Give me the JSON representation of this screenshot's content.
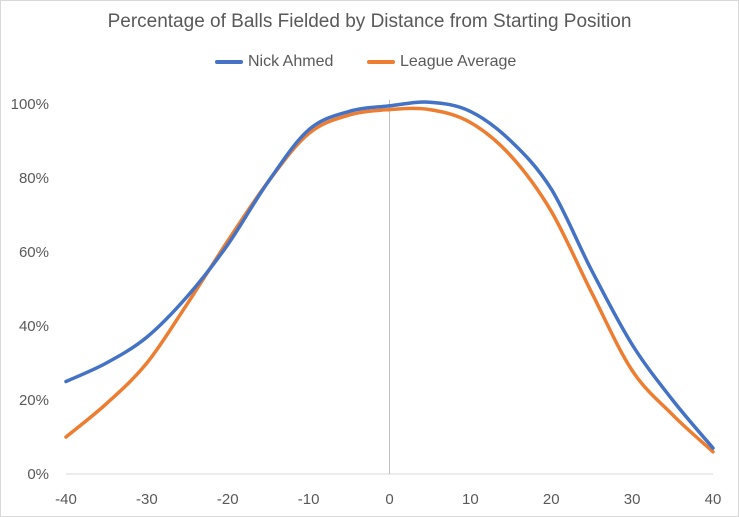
{
  "chart_data": {
    "type": "line",
    "title": "Percentage of Balls Fielded by Distance from Starting Position",
    "xlabel": "",
    "ylabel": "",
    "xlim": [
      -40,
      40
    ],
    "ylim": [
      0,
      100
    ],
    "x_ticks": [
      -40,
      -30,
      -20,
      -10,
      0,
      10,
      20,
      30,
      40
    ],
    "y_ticks": [
      0,
      20,
      40,
      60,
      80,
      100
    ],
    "y_tick_labels": [
      "0%",
      "20%",
      "40%",
      "60%",
      "80%",
      "100%"
    ],
    "grid": false,
    "legend_position": "top",
    "series": [
      {
        "name": "Nick Ahmed",
        "color": "#4472C4",
        "x": [
          -40,
          -35,
          -30,
          -25,
          -20,
          -15,
          -10,
          -5,
          0,
          5,
          10,
          15,
          20,
          25,
          30,
          35,
          40
        ],
        "y": [
          25,
          30,
          37,
          48,
          62,
          79,
          93,
          98,
          99.5,
          100.5,
          98,
          90,
          77,
          55,
          35,
          20,
          7
        ]
      },
      {
        "name": "League Average",
        "color": "#ED7D31",
        "x": [
          -40,
          -35,
          -30,
          -25,
          -20,
          -15,
          -10,
          -5,
          0,
          5,
          10,
          15,
          20,
          25,
          30,
          35,
          40
        ],
        "y": [
          10,
          19,
          30,
          46,
          63,
          79,
          92,
          97,
          98.5,
          98.5,
          95,
          86,
          71,
          49,
          28,
          16,
          6
        ]
      }
    ]
  }
}
